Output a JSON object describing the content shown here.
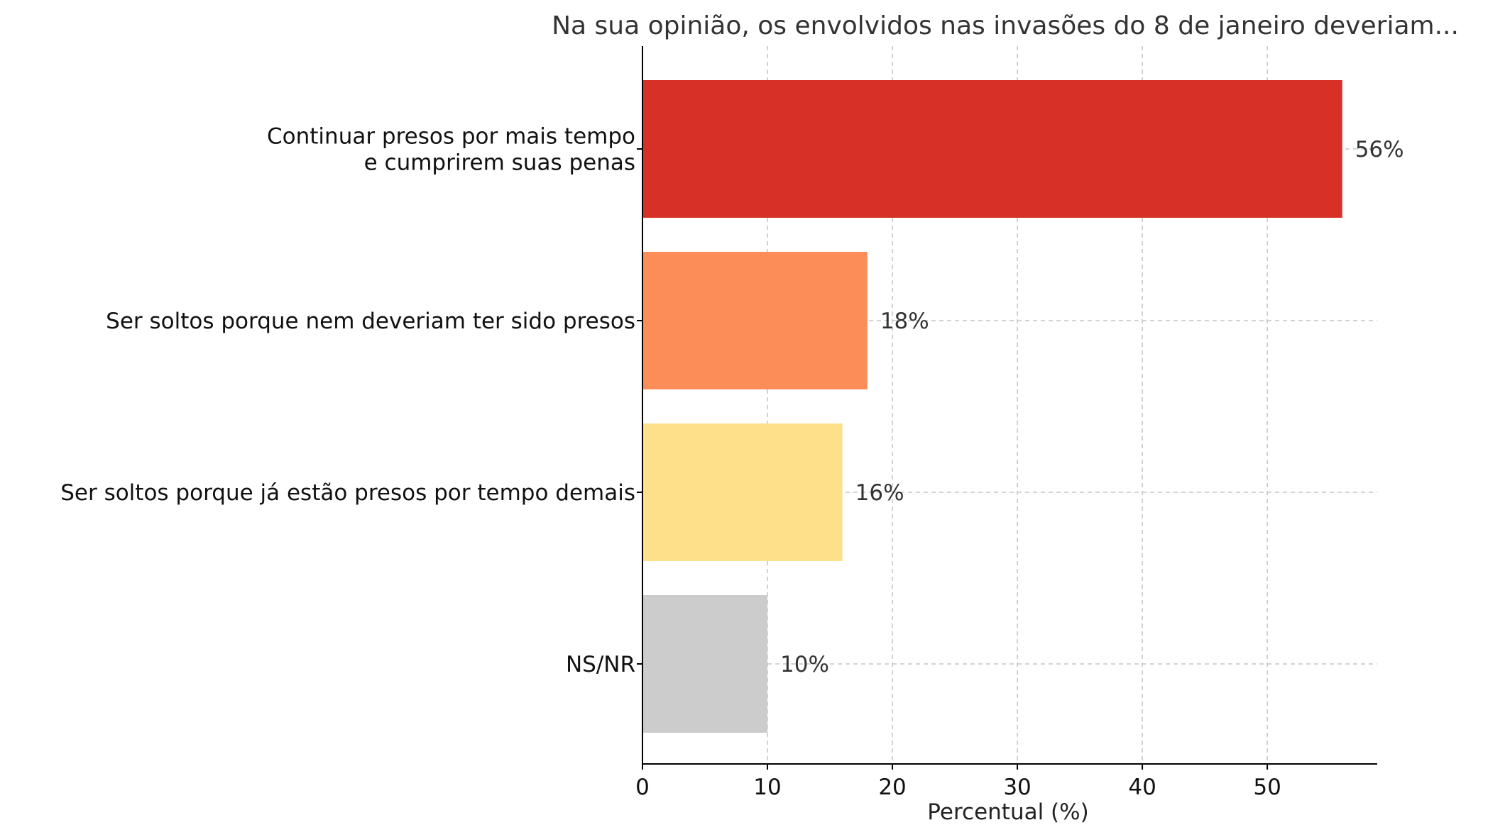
{
  "chart_data": {
    "type": "bar",
    "orientation": "horizontal",
    "title": "Na sua opinião, os envolvidos nas invasões do 8 de janeiro deveriam...",
    "xlabel": "Percentual (%)",
    "ylabel": "",
    "xlim": [
      0,
      58.8
    ],
    "xticks": [
      0,
      10,
      20,
      30,
      40,
      50
    ],
    "grid": true,
    "categories": [
      [
        "Continuar presos por mais tempo",
        "e cumprirem suas penas"
      ],
      [
        "Ser soltos porque nem deveriam ter sido presos"
      ],
      [
        "Ser soltos porque já estão presos por tempo demais"
      ],
      [
        "NS/NR"
      ]
    ],
    "values": [
      56,
      18,
      16,
      10
    ],
    "value_labels": [
      "56%",
      "18%",
      "16%",
      "10%"
    ],
    "colors": [
      "#d73027",
      "#fc8d59",
      "#fee08b",
      "#cccccc"
    ]
  }
}
